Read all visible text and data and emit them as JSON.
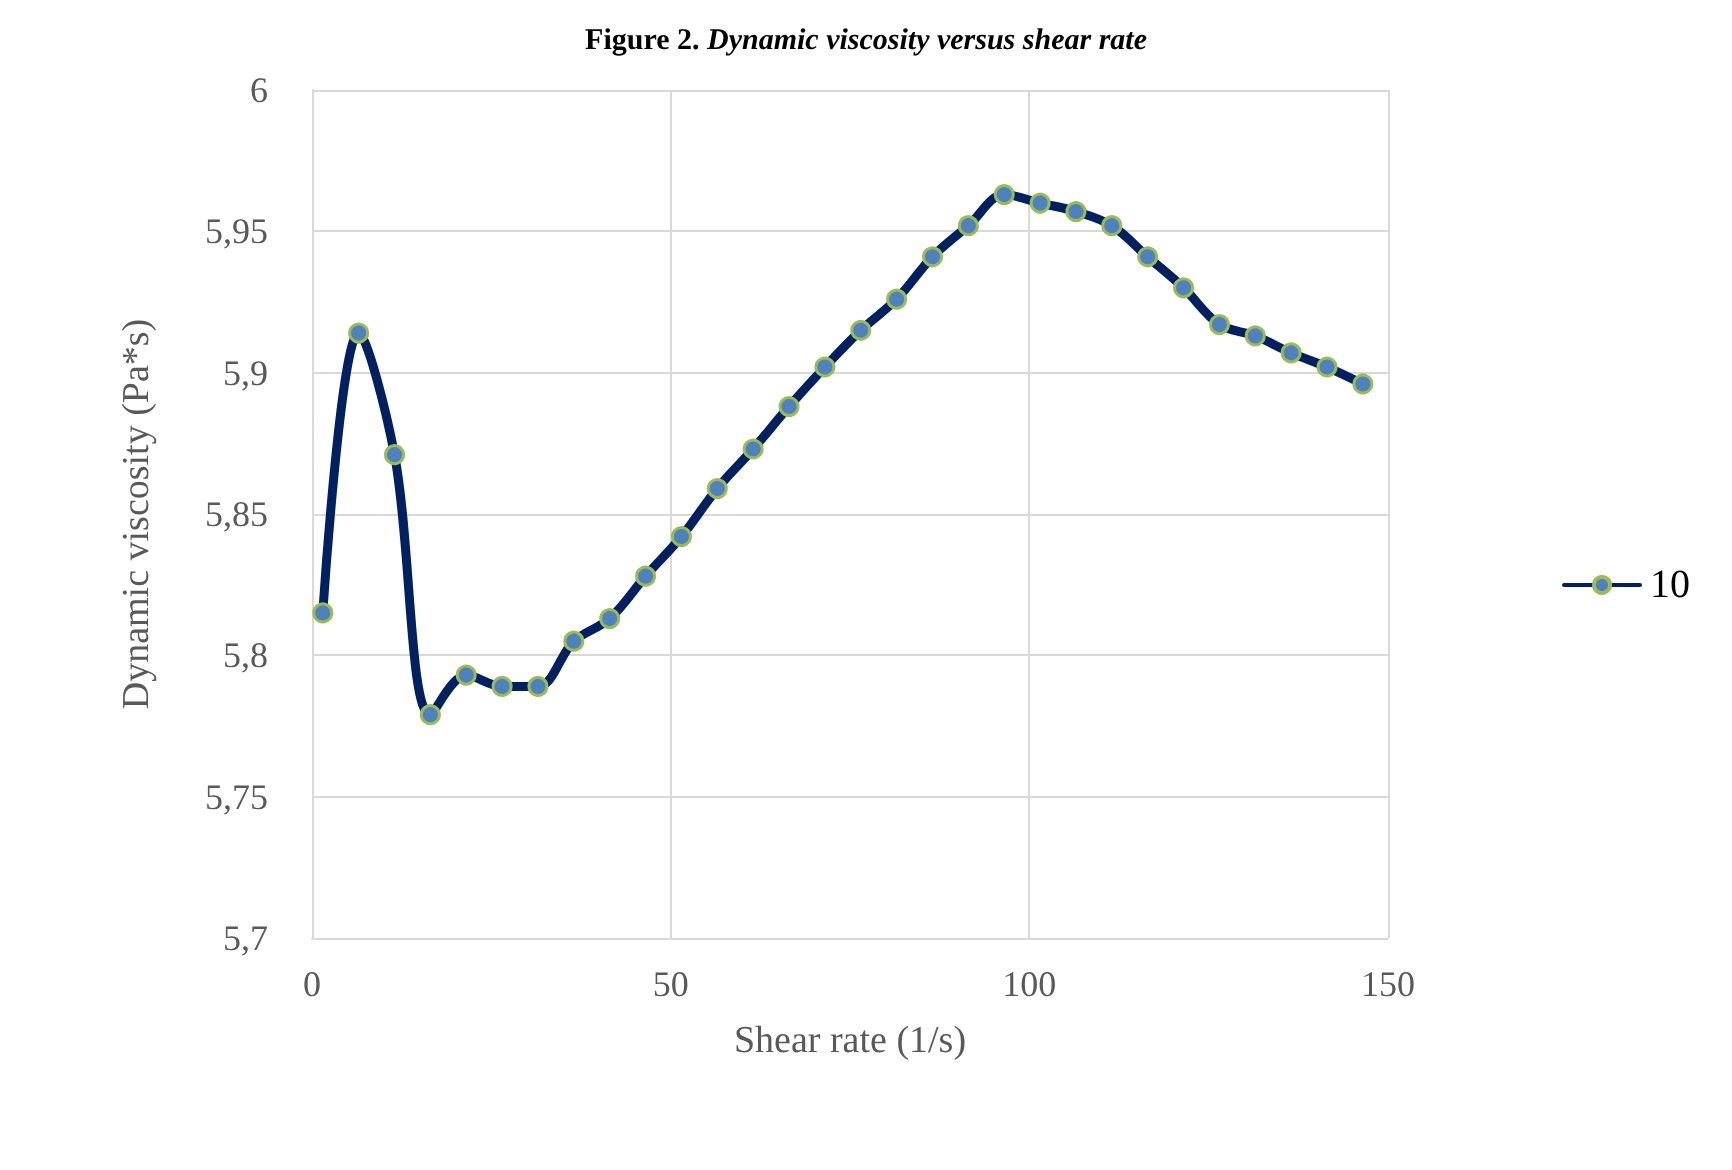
{
  "chart_data": {
    "type": "line",
    "title": "Figure 2. Dynamic viscosity versus shear rate",
    "xlabel": "Shear rate (1/s)",
    "ylabel": "Dynamic viscosity (Pa*s)",
    "x": [
      1.5,
      6.5,
      11.5,
      16.5,
      21.5,
      26.5,
      31.5,
      36.5,
      41.5,
      46.5,
      51.5,
      56.5,
      61.5,
      66.5,
      71.5,
      76.5,
      81.5,
      86.5,
      91.5,
      96.5,
      101.5,
      106.5,
      111.5,
      116.5,
      121.5,
      126.5,
      131.5,
      136.5,
      141.5,
      146.5
    ],
    "series": [
      {
        "name": "10",
        "color": "#002060",
        "values": [
          5.815,
          5.914,
          5.871,
          5.779,
          5.793,
          5.789,
          5.789,
          5.805,
          5.813,
          5.828,
          5.842,
          5.859,
          5.873,
          5.888,
          5.902,
          5.915,
          5.926,
          5.941,
          5.952,
          5.963,
          5.96,
          5.957,
          5.952,
          5.941,
          5.93,
          5.917,
          5.913,
          5.907,
          5.902,
          5.896
        ]
      }
    ],
    "xlim": [
      0,
      150
    ],
    "xticks": [
      0,
      50,
      100,
      150
    ],
    "ylim": [
      5.7,
      6
    ],
    "yticks": [
      {
        "value": 5.7,
        "label": "5,7"
      },
      {
        "value": 5.75,
        "label": "5,75"
      },
      {
        "value": 5.8,
        "label": "5,8"
      },
      {
        "value": 5.85,
        "label": "5,85"
      },
      {
        "value": 5.9,
        "label": "5,9"
      },
      {
        "value": 5.95,
        "label": "5,95"
      },
      6
    ],
    "grid": true,
    "legend": "right",
    "marker": "circle",
    "line_style": "solid"
  }
}
